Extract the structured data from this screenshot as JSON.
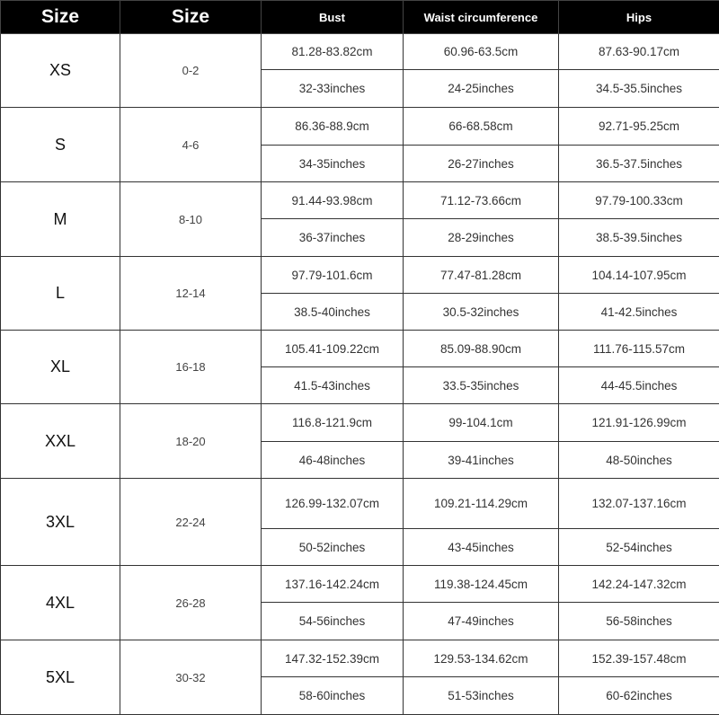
{
  "headers": [
    "Size",
    "Size",
    "Bust",
    "Waist circumference",
    "Hips"
  ],
  "rows": [
    {
      "size": "XS",
      "us": "0-2",
      "bust_cm": "81.28-83.82cm",
      "waist_cm": "60.96-63.5cm",
      "hips_cm": "87.63-90.17cm",
      "bust_in": "32-33inches",
      "waist_in": "24-25inches",
      "hips_in": "34.5-35.5inches"
    },
    {
      "size": "S",
      "us": "4-6",
      "bust_cm": "86.36-88.9cm",
      "waist_cm": "66-68.58cm",
      "hips_cm": "92.71-95.25cm",
      "bust_in": "34-35inches",
      "waist_in": "26-27inches",
      "hips_in": "36.5-37.5inches"
    },
    {
      "size": "M",
      "us": "8-10",
      "bust_cm": "91.44-93.98cm",
      "waist_cm": "71.12-73.66cm",
      "hips_cm": "97.79-100.33cm",
      "bust_in": "36-37inches",
      "waist_in": "28-29inches",
      "hips_in": "38.5-39.5inches"
    },
    {
      "size": "L",
      "us": "12-14",
      "bust_cm": "97.79-101.6cm",
      "waist_cm": "77.47-81.28cm",
      "hips_cm": "104.14-107.95cm",
      "bust_in": "38.5-40inches",
      "waist_in": "30.5-32inches",
      "hips_in": "41-42.5inches"
    },
    {
      "size": "XL",
      "us": "16-18",
      "bust_cm": "105.41-109.22cm",
      "waist_cm": "85.09-88.90cm",
      "hips_cm": "111.76-115.57cm",
      "bust_in": "41.5-43inches",
      "waist_in": "33.5-35inches",
      "hips_in": "44-45.5inches"
    },
    {
      "size": "XXL",
      "us": "18-20",
      "bust_cm": "116.8-121.9cm",
      "waist_cm": "99-104.1cm",
      "hips_cm": "121.91-126.99cm",
      "bust_in": "46-48inches",
      "waist_in": "39-41inches",
      "hips_in": "48-50inches"
    },
    {
      "size": "3XL",
      "us": "22-24",
      "bust_cm": "126.99-132.07cm",
      "waist_cm": "109.21-114.29cm",
      "hips_cm": "132.07-137.16cm",
      "bust_in": "50-52inches",
      "waist_in": "43-45inches",
      "hips_in": "52-54inches"
    },
    {
      "size": "4XL",
      "us": "26-28",
      "bust_cm": "137.16-142.24cm",
      "waist_cm": "119.38-124.45cm",
      "hips_cm": "142.24-147.32cm",
      "bust_in": "54-56inches",
      "waist_in": "47-49inches",
      "hips_in": "56-58inches"
    },
    {
      "size": "5XL",
      "us": "30-32",
      "bust_cm": "147.32-152.39cm",
      "waist_cm": "129.53-134.62cm",
      "hips_cm": "152.39-157.48cm",
      "bust_in": "58-60inches",
      "waist_in": "51-53inches",
      "hips_in": "60-62inches"
    }
  ]
}
